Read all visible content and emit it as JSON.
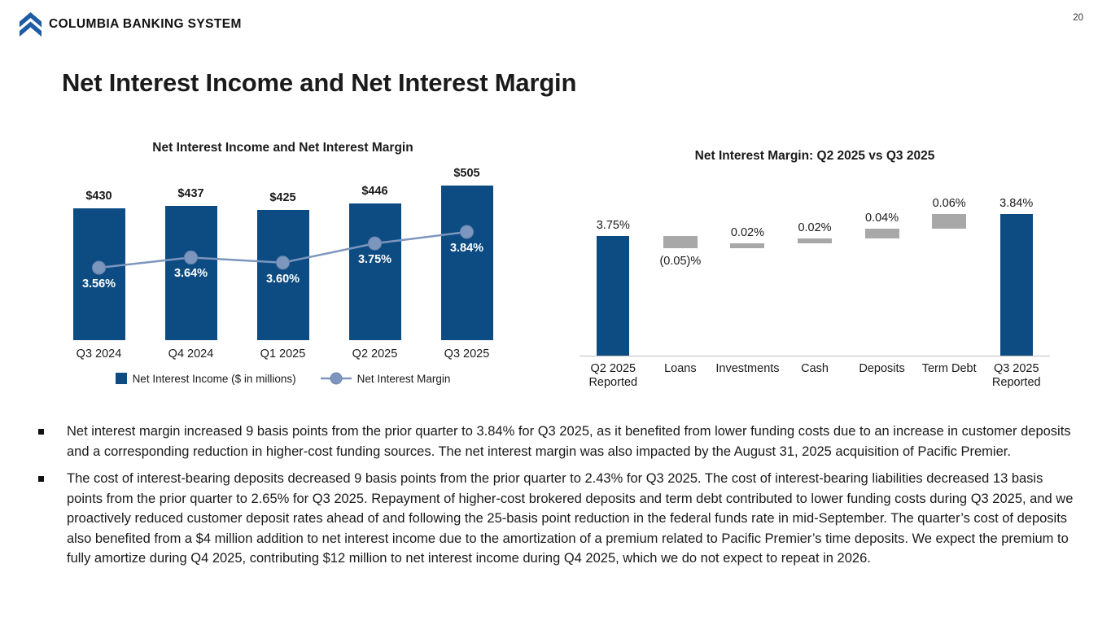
{
  "page_number": "20",
  "brand": "COLUMBIA BANKING SYSTEM",
  "slide_title": "Net Interest Income and Net Interest Margin",
  "colors": {
    "bar_blue": "#0D4C82",
    "line_blue": "#7D96BE",
    "line_marker_stroke": "#6B85AE",
    "waterfall_gray": "#A8A8A8",
    "logo_blue": "#1D5BA4",
    "axis_gray": "#BFBFBF",
    "text_dark": "#1A1A1A"
  },
  "chart_data": [
    {
      "type": "bar",
      "subtype": "bar-with-line-overlay",
      "title": "Net Interest Income and Net Interest Margin",
      "categories": [
        "Q3 2024",
        "Q4 2024",
        "Q1 2025",
        "Q2 2025",
        "Q3 2025"
      ],
      "series": [
        {
          "name": "Net Interest Income ($ in millions)",
          "type": "bar",
          "values": [
            430,
            437,
            425,
            446,
            505
          ],
          "labels": [
            "$430",
            "$437",
            "$425",
            "$446",
            "$505"
          ]
        },
        {
          "name": "Net Interest Margin",
          "type": "line",
          "values": [
            3.56,
            3.64,
            3.6,
            3.75,
            3.84
          ],
          "labels": [
            "3.56%",
            "3.64%",
            "3.60%",
            "3.75%",
            "3.84%"
          ]
        }
      ],
      "legend_position": "bottom",
      "grid": false,
      "axes_visible": false
    },
    {
      "type": "bar",
      "subtype": "waterfall",
      "title": "Net Interest Margin: Q2 2025 vs Q3 2025",
      "categories": [
        "Q2 2025 Reported",
        "Loans",
        "Investments",
        "Cash",
        "Deposits",
        "Term Debt",
        "Q3 2025 Reported"
      ],
      "values": [
        3.75,
        -0.05,
        0.02,
        0.02,
        0.04,
        0.06,
        3.84
      ],
      "labels": [
        "3.75%",
        "(0.05)%",
        "0.02%",
        "0.02%",
        "0.04%",
        "0.06%",
        "3.84%"
      ],
      "total_indexes": [
        0,
        6
      ],
      "baseline_value": 3.26,
      "grid": false,
      "legend_position": "none"
    }
  ],
  "bullets": [
    "Net interest margin increased 9 basis points from the prior quarter to 3.84% for Q3 2025, as it benefited from lower funding costs due to an increase in customer deposits and a corresponding reduction in higher-cost funding sources. The net interest margin was also impacted by the August 31, 2025 acquisition of Pacific Premier.",
    "The cost of interest-bearing deposits decreased 9 basis points from the prior quarter to 2.43% for Q3 2025. The cost of interest-bearing liabilities decreased 13 basis points from the prior quarter to 2.65% for Q3 2025. Repayment of higher-cost brokered deposits and term debt contributed to lower funding costs during Q3 2025, and we proactively reduced customer deposit rates ahead of and following the 25-basis point reduction in the federal funds rate in mid-September. The quarter’s cost of deposits also benefited from a $4 million addition to net interest income due to the amortization of a premium related to Pacific Premier’s time deposits. We expect the premium to fully amortize during Q4 2025, contributing $12 million to net interest income during Q4 2025, which we do not expect to repeat in 2026."
  ]
}
